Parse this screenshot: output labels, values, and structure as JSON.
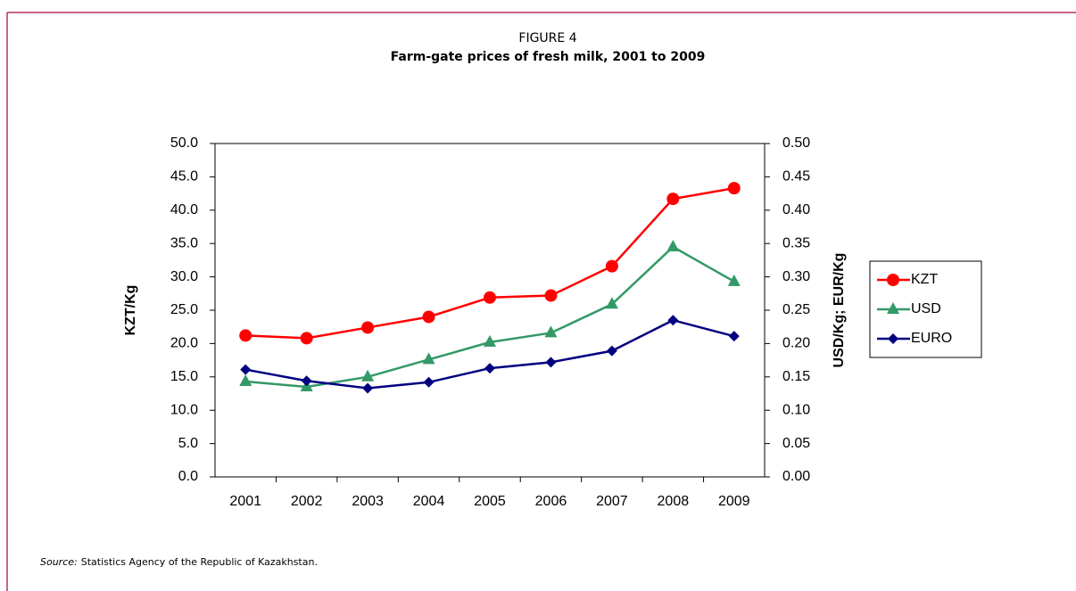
{
  "chart_data": {
    "type": "line",
    "label": "FIGURE 4",
    "title": "Farm-gate prices of fresh milk, 2001 to 2009",
    "y_label": "KZT/Kg",
    "y2_label": "USD/Kg; EUR/Kg",
    "categories": [
      "2001",
      "2002",
      "2003",
      "2004",
      "2005",
      "2006",
      "2007",
      "2008",
      "2009"
    ],
    "series": [
      {
        "name": "KZT",
        "color": "#ff0000",
        "marker": "circle",
        "values": [
          21.2,
          20.8,
          22.4,
          24.0,
          26.9,
          27.2,
          31.6,
          41.7,
          43.3
        ]
      },
      {
        "name": "USD",
        "color": "#339966",
        "marker": "triangle",
        "axis": "y2",
        "values": [
          0.143,
          0.135,
          0.15,
          0.176,
          0.202,
          0.216,
          0.259,
          0.345,
          0.293
        ]
      },
      {
        "name": "EURO",
        "color": "#000080",
        "marker": "diamond",
        "axis": "y2",
        "values": [
          0.161,
          0.144,
          0.133,
          0.142,
          0.163,
          0.172,
          0.189,
          0.235,
          0.211
        ]
      }
    ],
    "ylim": [
      0,
      50
    ],
    "yticks": [
      {
        "value": 0,
        "label": "0.0"
      },
      {
        "value": 5,
        "label": "5.0"
      },
      {
        "value": 10,
        "label": "10.0"
      },
      {
        "value": 15,
        "label": "15.0"
      },
      {
        "value": 20,
        "label": "20.0"
      },
      {
        "value": 25,
        "label": "25.0"
      },
      {
        "value": 30,
        "label": "30.0"
      },
      {
        "value": 35,
        "label": "35.0"
      },
      {
        "value": 40,
        "label": "40.0"
      },
      {
        "value": 45,
        "label": "45.0"
      },
      {
        "value": 50,
        "label": "50.0"
      }
    ],
    "y2lim": [
      0,
      0.5
    ],
    "y2ticks": [
      {
        "value": 0,
        "label": "0.00"
      },
      0.05,
      {
        "value": 0.1,
        "label": "0.10"
      },
      0.15,
      {
        "value": 0.2,
        "label": "0.20"
      },
      0.25,
      {
        "value": 0.3,
        "label": "0.30"
      },
      0.35,
      {
        "value": 0.4,
        "label": "0.40"
      },
      0.45,
      {
        "value": 0.5,
        "label": "0.50"
      }
    ],
    "grid": false,
    "legend": "right",
    "source_label": "Source:",
    "source_text": "Statistics Agency of the Republic of Kazakhstan."
  }
}
